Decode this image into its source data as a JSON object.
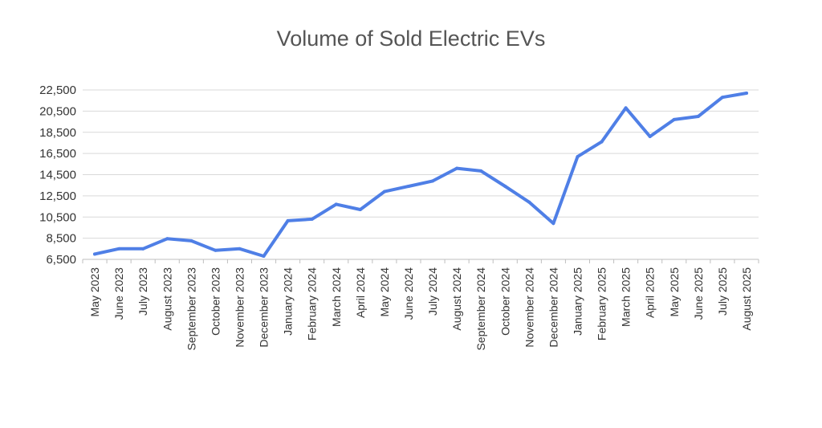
{
  "chart_data": {
    "type": "line",
    "title": "Volume of Sold Electric EVs",
    "xlabel": "",
    "ylabel": "",
    "ylim": [
      6500,
      22500
    ],
    "yticks": [
      "6,500",
      "8,500",
      "10,500",
      "12,500",
      "14,500",
      "16,500",
      "18,500",
      "20,500",
      "22,500"
    ],
    "ytick_values": [
      6500,
      8500,
      10500,
      12500,
      14500,
      16500,
      18500,
      20500,
      22500
    ],
    "grid": true,
    "legend": "none",
    "line_color": "#4f7fe6",
    "categories": [
      "May 2023",
      "June 2023",
      "July 2023",
      "August 2023",
      "September 2023",
      "October 2023",
      "November 2023",
      "December 2023",
      "January 2024",
      "February 2024",
      "March 2024",
      "April 2024",
      "May 2024",
      "June 2024",
      "July 2024",
      "August 2024",
      "September 2024",
      "October 2024",
      "November 2024",
      "December 2024",
      "January 2025",
      "February 2025",
      "March 2025",
      "April 2025",
      "May 2025",
      "June 2025",
      "July 2025",
      "August 2025"
    ],
    "series": [
      {
        "values": [
          7000,
          7500,
          7500,
          8450,
          8250,
          7350,
          7500,
          6800,
          10150,
          10300,
          11700,
          11200,
          12900,
          13400,
          13900,
          15100,
          14850,
          13400,
          11900,
          9900,
          16200,
          17600,
          20800,
          18100,
          19700,
          20000,
          21800,
          22200
        ]
      }
    ]
  }
}
